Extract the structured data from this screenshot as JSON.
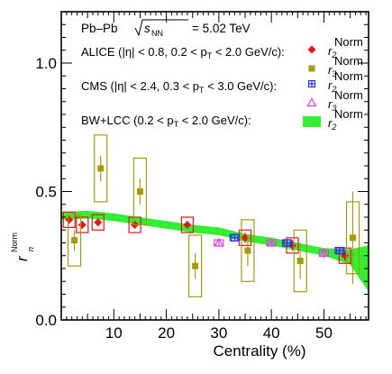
{
  "chart_data": {
    "type": "scatter",
    "header": {
      "system": "Pb–Pb",
      "energy": "= 5.02 TeV",
      "sqrt": "s",
      "sqrt_sub": "NN"
    },
    "xlabel": "Centrality (%)",
    "ylabel": "r",
    "ylabel_sub": "n",
    "ylabel_sup": "Norm",
    "xlim": [
      0,
      58.5
    ],
    "ylim": [
      0.0,
      1.2
    ],
    "xticks": [
      "10",
      "20",
      "30",
      "40",
      "50"
    ],
    "yticks": [
      "0.0",
      "0.5",
      "1.0"
    ],
    "legend_position": "top",
    "legend_groups": [
      {
        "text": "ALICE (|η| < 0.8, 0.2 < p",
        "sub": "T",
        "tail": " < 2.0 GeV/c):"
      },
      {
        "text": "CMS (|η| < 2.4, 0.3 < p",
        "sub": "T",
        "tail": " < 3.0 GeV/c):"
      },
      {
        "text": "BW+LCC (0.2 < p",
        "sub": "T",
        "tail": " < 2.0 GeV/c):"
      }
    ],
    "series": [
      {
        "name": "r2 Norm",
        "group": "ALICE",
        "color": "#e8131b",
        "marker": "diamond",
        "x": [
          1.5,
          4.0,
          7.0,
          14.0,
          24.0,
          35.0,
          44.0,
          54.0
        ],
        "y": [
          0.39,
          0.37,
          0.38,
          0.37,
          0.37,
          0.32,
          0.29,
          0.25
        ],
        "sys": [
          0.03,
          0.03,
          0.03,
          0.03,
          0.03,
          0.03,
          0.03,
          0.03
        ],
        "stat": [
          0.015,
          0.015,
          0.015,
          0.015,
          0.015,
          0.02,
          0.02,
          0.02
        ]
      },
      {
        "name": "r3 Norm",
        "group": "ALICE",
        "color": "#a59b0c",
        "marker": "square",
        "x": [
          2.5,
          7.5,
          15.0,
          25.5,
          35.5,
          45.5,
          55.5
        ],
        "y": [
          0.31,
          0.59,
          0.5,
          0.21,
          0.27,
          0.23,
          0.32
        ],
        "sys": [
          0.1,
          0.13,
          0.13,
          0.12,
          0.12,
          0.12,
          0.14
        ],
        "stat": [
          0.04,
          0.05,
          0.05,
          0.05,
          0.06,
          0.07,
          0.18
        ]
      },
      {
        "name": "r2 Norm",
        "group": "CMS",
        "color": "#2a2aff",
        "marker": "open-square-cross",
        "x": [
          33.0,
          43.0,
          53.0
        ],
        "y": [
          0.32,
          0.3,
          0.27
        ],
        "sys": [
          0.012,
          0.012,
          0.012
        ],
        "stat": [
          0.005,
          0.005,
          0.005
        ]
      },
      {
        "name": "r3 Norm",
        "group": "CMS",
        "color": "#e53de8",
        "marker": "open-triangle",
        "x": [
          30.0,
          40.0,
          50.0
        ],
        "y": [
          0.3,
          0.3,
          0.26
        ],
        "sys": [
          0.012,
          0.012,
          0.012
        ],
        "stat": [
          0.01,
          0.01,
          0.02
        ]
      },
      {
        "name": "r2 Norm",
        "group": "BW+LCC",
        "color": "#33ee33",
        "marker": "band",
        "x": [
          0,
          5,
          10,
          15,
          20,
          25,
          30,
          35,
          40,
          45,
          50,
          55,
          58.5
        ],
        "y": [
          0.405,
          0.41,
          0.4,
          0.385,
          0.37,
          0.355,
          0.345,
          0.32,
          0.305,
          0.285,
          0.265,
          0.245,
          0.2
        ],
        "err": [
          0.015,
          0.015,
          0.015,
          0.015,
          0.015,
          0.015,
          0.015,
          0.015,
          0.015,
          0.015,
          0.015,
          0.03,
          0.09
        ]
      }
    ]
  }
}
